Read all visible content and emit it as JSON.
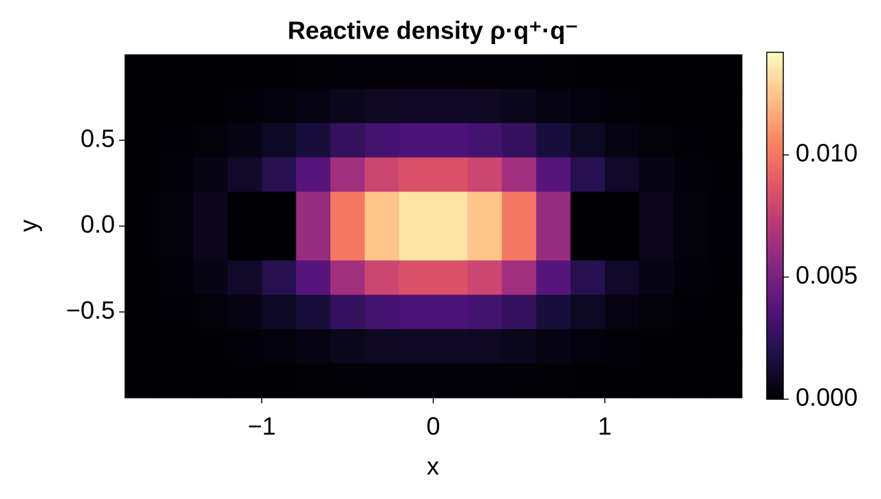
{
  "chart_data": {
    "type": "heatmap",
    "title": "Reactive density ρ·q⁺·q⁻",
    "xlabel": "x",
    "ylabel": "y",
    "x": [
      -1.7,
      -1.5,
      -1.3,
      -1.1,
      -0.9,
      -0.7,
      -0.5,
      -0.3,
      -0.1,
      0.1,
      0.3,
      0.5,
      0.7,
      0.9,
      1.1,
      1.3,
      1.5,
      1.7
    ],
    "y": [
      0.9,
      0.7,
      0.5,
      0.3,
      0.1,
      -0.1,
      -0.3,
      -0.5,
      -0.7,
      -0.9
    ],
    "values": [
      [
        0,
        0,
        1e-05,
        2e-05,
        4e-05,
        6e-05,
        0.00011,
        0.00013,
        0.00014,
        0.00014,
        0.00013,
        0.00011,
        6e-05,
        4e-05,
        2e-05,
        1e-05,
        0,
        0
      ],
      [
        0,
        1e-05,
        4e-05,
        0.00011,
        0.00022,
        0.0004,
        0.00066,
        0.00082,
        0.00088,
        0.00088,
        0.00082,
        0.00066,
        0.0004,
        0.00022,
        0.00011,
        4e-05,
        1e-05,
        0
      ],
      [
        1e-05,
        5e-05,
        0.00017,
        0.00041,
        0.00085,
        0.00153,
        0.00256,
        0.00317,
        0.00341,
        0.00341,
        0.00317,
        0.00256,
        0.00153,
        0.00085,
        0.00041,
        0.00017,
        5e-05,
        1e-05
      ],
      [
        3e-05,
        0.00013,
        0.00043,
        0.00102,
        0.00213,
        0.00383,
        0.00639,
        0.00792,
        0.00852,
        0.00852,
        0.00792,
        0.00639,
        0.00383,
        0.00213,
        0.00102,
        0.00043,
        0.00013,
        3e-05
      ],
      [
        5e-05,
        0.0002,
        0.00067,
        0,
        0,
        0.00604,
        0.01007,
        0.01248,
        0.01342,
        0.01342,
        0.01248,
        0.01007,
        0.00604,
        0,
        0,
        0.00067,
        0.0002,
        5e-05
      ],
      [
        5e-05,
        0.0002,
        0.00067,
        0,
        0,
        0.00604,
        0.01007,
        0.01248,
        0.01342,
        0.01342,
        0.01248,
        0.01007,
        0.00604,
        0,
        0,
        0.00067,
        0.0002,
        5e-05
      ],
      [
        3e-05,
        0.00013,
        0.00043,
        0.00102,
        0.00213,
        0.00383,
        0.00639,
        0.00792,
        0.00852,
        0.00852,
        0.00792,
        0.00639,
        0.00383,
        0.00213,
        0.00102,
        0.00043,
        0.00013,
        3e-05
      ],
      [
        1e-05,
        5e-05,
        0.00017,
        0.00041,
        0.00085,
        0.00153,
        0.00256,
        0.00317,
        0.00341,
        0.00341,
        0.00317,
        0.00256,
        0.00153,
        0.00085,
        0.00041,
        0.00017,
        5e-05,
        1e-05
      ],
      [
        0,
        1e-05,
        4e-05,
        0.00011,
        0.00022,
        0.0004,
        0.00066,
        0.00082,
        0.00088,
        0.00088,
        0.00082,
        0.00066,
        0.0004,
        0.00022,
        0.00011,
        4e-05,
        1e-05,
        0
      ],
      [
        0,
        0,
        1e-05,
        2e-05,
        4e-05,
        6e-05,
        0.00011,
        0.00013,
        0.00014,
        0.00014,
        0.00013,
        0.00011,
        6e-05,
        4e-05,
        2e-05,
        1e-05,
        0,
        0
      ]
    ],
    "xlim": [
      -1.8,
      1.8
    ],
    "ylim": [
      -1,
      1
    ],
    "xticks": [
      {
        "value": -1,
        "label": "−1"
      },
      0,
      1
    ],
    "yticks": [
      {
        "value": -0.5,
        "label": "−0.5"
      },
      {
        "value": 0,
        "label": "0.0"
      },
      0.5
    ],
    "clim": [
      0,
      0.0142
    ],
    "cticks": [
      {
        "value": 0,
        "label": "0.000"
      },
      {
        "value": 0.005,
        "label": "0.005"
      },
      {
        "value": 0.01,
        "label": "0.010"
      }
    ],
    "colormap": [
      "#000004",
      "#1c1044",
      "#4f127b",
      "#812581",
      "#b5367a",
      "#e55964",
      "#fb8761",
      "#fec287",
      "#fcfdbf"
    ]
  }
}
